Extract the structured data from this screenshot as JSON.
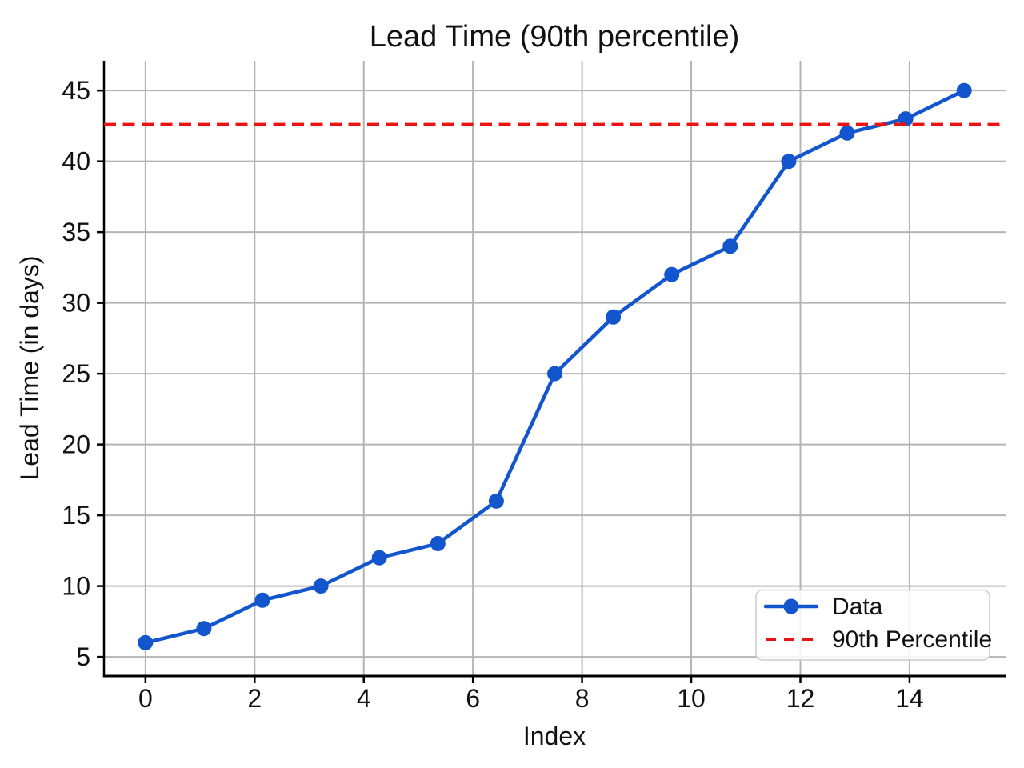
{
  "chart_data": {
    "type": "line",
    "title": "Lead Time (90th percentile)",
    "xlabel": "Index",
    "ylabel": "Lead Time (in days)",
    "xlim": [
      -0.76,
      15.76
    ],
    "ylim": [
      3.65,
      47.1
    ],
    "xticks": [
      0,
      2,
      4,
      6,
      8,
      10,
      12,
      14
    ],
    "yticks": [
      5,
      10,
      15,
      20,
      25,
      30,
      35,
      40,
      45
    ],
    "grid": true,
    "legend_position": "lower right",
    "series": [
      {
        "name": "Data",
        "type": "line-markers",
        "color": "#1255cd",
        "x": [
          0,
          1.0714,
          2.1429,
          3.2143,
          4.2857,
          5.3571,
          6.4286,
          7.5,
          8.5714,
          9.6429,
          10.7143,
          11.7857,
          12.8571,
          13.9286,
          15
        ],
        "y": [
          6,
          7,
          9,
          10,
          12,
          13,
          16,
          25,
          29,
          32,
          34,
          40,
          42,
          43,
          45
        ]
      },
      {
        "name": "90th Percentile",
        "type": "horizontal-dashed-line",
        "color": "#ee1111",
        "value": 42.6
      }
    ],
    "colors": {
      "grid": "#b4b4b4",
      "spine": "#000000",
      "text": "#111111",
      "legend_border": "#cccccc",
      "legend_background": "#ffffff"
    }
  }
}
